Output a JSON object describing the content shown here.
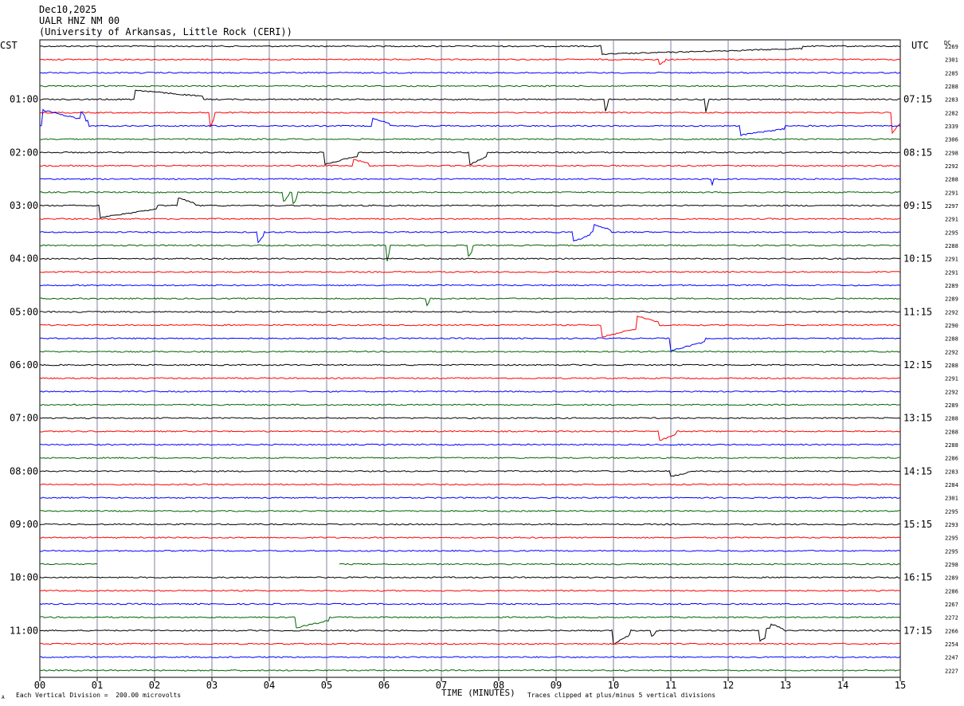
{
  "header": {
    "date": "Dec10,2025",
    "station": "UALR HNZ NM 00",
    "institution": "(University of Arkansas, Little Rock (CERI))"
  },
  "left_tz": "CST",
  "right_tz": "UTC",
  "dc_label": "DC",
  "footer": {
    "scale": "Each Vertical Division =  200.00 microvolts",
    "clip": "Traces clipped at plus/minus 5 vertical divisions",
    "corner_mark": "A"
  },
  "colors": {
    "black": "#000000",
    "red": "#ff0000",
    "blue": "#0000ff",
    "green": "#006400",
    "grid": "#8080a0"
  },
  "chart_data": {
    "type": "line",
    "title": "Dec10,2025 UALR HNZ NM 00",
    "xlabel": "TIME (MINUTES)",
    "xlim": [
      0,
      15
    ],
    "x_ticks": [
      "00",
      "01",
      "02",
      "03",
      "04",
      "05",
      "06",
      "07",
      "08",
      "09",
      "10",
      "11",
      "12",
      "13",
      "14",
      "15"
    ],
    "trace_colors": [
      "black",
      "red",
      "blue",
      "green"
    ],
    "cst_labels": [
      "01:00",
      "02:00",
      "03:00",
      "04:00",
      "05:00",
      "06:00",
      "07:00",
      "08:00",
      "09:00",
      "10:00",
      "11:00"
    ],
    "utc_labels": [
      "07:15",
      "08:15",
      "09:15",
      "10:15",
      "11:15",
      "12:15",
      "13:15",
      "14:15",
      "15:15",
      "16:15",
      "17:15"
    ],
    "dc_offsets": [
      2269,
      2301,
      2285,
      2288,
      2283,
      2282,
      2339,
      2306,
      2298,
      2292,
      2288,
      2291,
      2297,
      2291,
      2295,
      2288,
      2291,
      2291,
      2289,
      2289,
      2292,
      2290,
      2288,
      2292,
      2288,
      2291,
      2292,
      2289,
      2288,
      2288,
      2288,
      2286,
      2283,
      2284,
      2301,
      2295,
      2293,
      2295,
      2295,
      2298,
      2289,
      2286,
      2267,
      2272,
      2266,
      2254,
      2247,
      2227
    ],
    "events": [
      {
        "row": 0,
        "x": 9.8,
        "amp": -0.6,
        "sustain": 3.5
      },
      {
        "row": 1,
        "x": 10.8,
        "amp": -0.4,
        "sustain": 0.1
      },
      {
        "row": 4,
        "x": 1.65,
        "amp": 0.7,
        "sustain": 1.2
      },
      {
        "row": 4,
        "x": 9.85,
        "amp": -1.1,
        "sustain": 0.05
      },
      {
        "row": 4,
        "x": 11.6,
        "amp": -1.1,
        "sustain": 0.05
      },
      {
        "row": 5,
        "x": 2.95,
        "amp": -1.2,
        "sustain": 0.1
      },
      {
        "row": 5,
        "x": 14.85,
        "amp": -1.6,
        "sustain": 0.2
      },
      {
        "row": 6,
        "x": 0.05,
        "amp": 1.2,
        "sustain": 0.8
      },
      {
        "row": 6,
        "x": 0.7,
        "amp": 0.7,
        "sustain": 0.1
      },
      {
        "row": 6,
        "x": 5.8,
        "amp": 0.6,
        "sustain": 0.3
      },
      {
        "row": 6,
        "x": 12.2,
        "amp": -0.7,
        "sustain": 0.8
      },
      {
        "row": 8,
        "x": 4.95,
        "amp": -0.9,
        "sustain": 0.6
      },
      {
        "row": 8,
        "x": 7.5,
        "amp": -0.9,
        "sustain": 0.3
      },
      {
        "row": 9,
        "x": 5.45,
        "amp": 0.5,
        "sustain": 0.3
      },
      {
        "row": 10,
        "x": 11.7,
        "amp": -0.6,
        "sustain": 0.05
      },
      {
        "row": 11,
        "x": 4.25,
        "amp": -0.7,
        "sustain": 0.1
      },
      {
        "row": 11,
        "x": 4.4,
        "amp": -1.0,
        "sustain": 0.1
      },
      {
        "row": 12,
        "x": 1.05,
        "amp": -0.9,
        "sustain": 1.0
      },
      {
        "row": 12,
        "x": 2.4,
        "amp": 0.6,
        "sustain": 0.3
      },
      {
        "row": 14,
        "x": 3.8,
        "amp": -0.8,
        "sustain": 0.1
      },
      {
        "row": 14,
        "x": 9.3,
        "amp": -0.7,
        "sustain": 0.3
      },
      {
        "row": 14,
        "x": 9.65,
        "amp": 0.6,
        "sustain": 0.3
      },
      {
        "row": 15,
        "x": 6.05,
        "amp": -1.3,
        "sustain": 0.05
      },
      {
        "row": 15,
        "x": 7.45,
        "amp": -1.0,
        "sustain": 0.1
      },
      {
        "row": 19,
        "x": 6.75,
        "amp": -0.5,
        "sustain": 0.05
      },
      {
        "row": 21,
        "x": 9.8,
        "amp": -0.9,
        "sustain": 0.6
      },
      {
        "row": 21,
        "x": 10.4,
        "amp": 0.7,
        "sustain": 0.4
      },
      {
        "row": 22,
        "x": 11.0,
        "amp": -0.9,
        "sustain": 0.6
      },
      {
        "row": 29,
        "x": 10.8,
        "amp": -0.7,
        "sustain": 0.3
      },
      {
        "row": 32,
        "x": 11.0,
        "amp": -0.4,
        "sustain": 0.3
      },
      {
        "row": 43,
        "x": 4.45,
        "amp": -0.8,
        "sustain": 0.6
      },
      {
        "row": 44,
        "x": 10.0,
        "amp": -1.0,
        "sustain": 0.3
      },
      {
        "row": 44,
        "x": 10.65,
        "amp": -0.5,
        "sustain": 0.1
      },
      {
        "row": 44,
        "x": 12.55,
        "amp": -0.8,
        "sustain": 0.2
      },
      {
        "row": 44,
        "x": 12.65,
        "amp": 0.6,
        "sustain": 0.3
      }
    ],
    "gaps": [
      {
        "row": 0,
        "from": 0,
        "to": 0
      },
      {
        "row": 39,
        "from": 1.0,
        "to": 5.2
      },
      {
        "row": 40,
        "from": 0,
        "to": 0
      }
    ]
  }
}
